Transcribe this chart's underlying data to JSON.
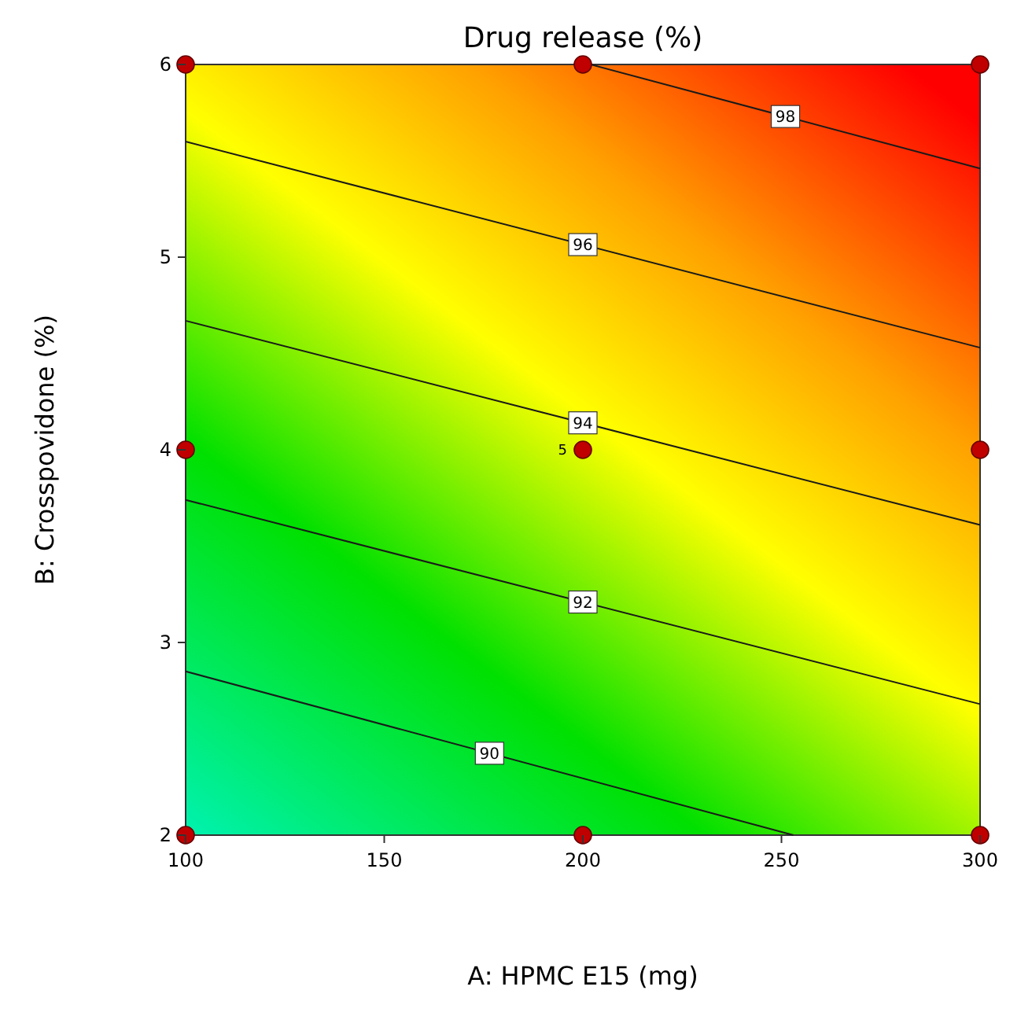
{
  "chart_data": {
    "type": "line",
    "title": "Drug release (%)",
    "xlabel": "A: HPMC E15 (mg)",
    "ylabel": "B: Crosspovidone (%)",
    "xlim": [
      100,
      300
    ],
    "xticks": [
      100,
      150,
      200,
      250,
      300
    ],
    "ylim": [
      2,
      6
    ],
    "yticks": [
      2,
      3,
      4,
      5,
      6
    ],
    "grid": false,
    "series": [
      {
        "name": "90",
        "color": "#1a1a1a",
        "x": [
          100,
          253
        ],
        "values": [
          2.85,
          2
        ]
      },
      {
        "name": "92",
        "color": "#1a1a1a",
        "x": [
          100,
          300
        ],
        "values": [
          3.74,
          2.68
        ]
      },
      {
        "name": "94",
        "color": "#1a1a1a",
        "x": [
          100,
          300
        ],
        "values": [
          4.67,
          3.61
        ]
      },
      {
        "name": "96",
        "color": "#1a1a1a",
        "x": [
          100,
          300
        ],
        "values": [
          5.6,
          4.53
        ]
      },
      {
        "name": "98",
        "color": "#1a1a1a",
        "x": [
          202,
          300
        ],
        "values": [
          6,
          5.46
        ]
      },
      {
        "type": "scatter",
        "marker": "circle",
        "color": "#c00000",
        "x": [
          100,
          200,
          300,
          100,
          200,
          300,
          100,
          200,
          300
        ],
        "values": [
          2,
          2,
          2,
          4,
          4,
          4,
          6,
          6,
          6
        ]
      }
    ],
    "annotations": [
      {
        "text": "5",
        "x": 200,
        "y": 4
      }
    ]
  }
}
